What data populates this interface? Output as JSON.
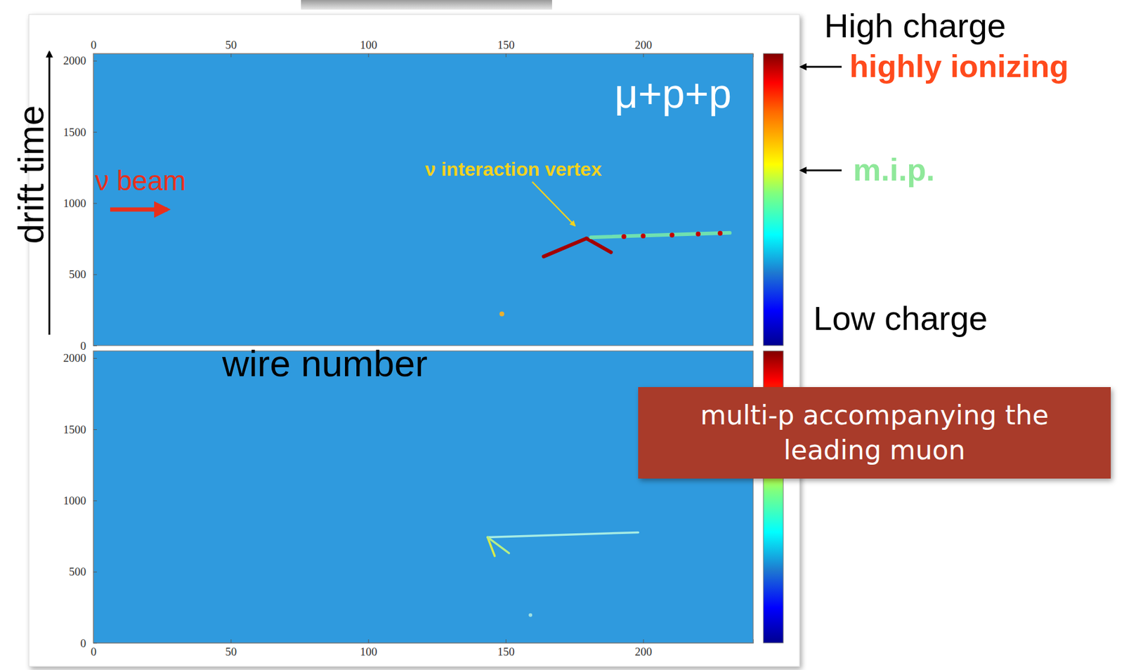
{
  "chart_data": [
    {
      "type": "line",
      "title": "μ+p+p",
      "x_label": "wire number",
      "y_label": "drift time",
      "xlim": [
        0,
        240
      ],
      "ylim": [
        0,
        2050
      ],
      "xticks": [
        0,
        50,
        100,
        150,
        200
      ],
      "yticks": [
        0,
        500,
        1000,
        1500,
        2000
      ],
      "series": [
        {
          "color": "#a30000",
          "x": [
            179.4,
            163.8
          ],
          "values": [
            752,
            625
          ]
        },
        {
          "color": "#a30000",
          "x": [
            179.4,
            188.3
          ],
          "values": [
            752,
            655
          ]
        },
        {
          "color": "#6fe0b0",
          "x": [
            181.0,
            231.5
          ],
          "values": [
            760,
            791
          ]
        },
        {
          "type": "scatter",
          "marker": "circle",
          "color": "#c40000",
          "x": [
            193.0,
            200.0,
            210.5,
            220.0,
            228.0
          ],
          "values": [
            765,
            769,
            776,
            783,
            788
          ]
        },
        {
          "type": "scatter",
          "marker": "circle",
          "color": "#e8b030",
          "x": [
            148.6
          ],
          "values": [
            222
          ]
        }
      ],
      "annotations": [
        "ν beam",
        "ν interaction vertex"
      ],
      "colorbar_labels": [
        "High charge",
        "highly ionizing",
        "m.i.p.",
        "Low charge"
      ]
    },
    {
      "type": "line",
      "xlim": [
        0,
        240
      ],
      "ylim": [
        0,
        2050
      ],
      "xticks": [
        0,
        50,
        100,
        150,
        200
      ],
      "yticks": [
        0,
        500,
        1000,
        1500,
        2000
      ],
      "series": [
        {
          "color": "#a6ece4",
          "x": [
            143.4,
            198.2
          ],
          "values": [
            742,
            776
          ]
        },
        {
          "color": "#d8ea4a",
          "x": [
            143.4,
            146.0
          ],
          "values": [
            742,
            610
          ]
        },
        {
          "color": "#b6ee86",
          "x": [
            143.4,
            151.2
          ],
          "values": [
            742,
            630
          ]
        },
        {
          "type": "scatter",
          "marker": "circle",
          "color": "#9fe0e0",
          "x": [
            159.0
          ],
          "values": [
            196
          ]
        }
      ],
      "annotations": [
        "multi-p accompanying the leading muon"
      ]
    }
  ]
}
